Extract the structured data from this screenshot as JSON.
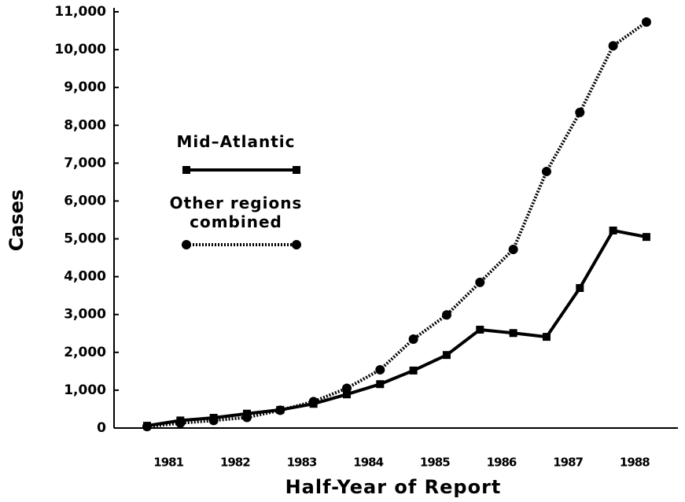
{
  "chart_data": {
    "type": "line",
    "xlabel": "Half-Year of Report",
    "ylabel": "Cases",
    "categories": [
      "1981",
      null,
      "1982",
      null,
      "1983",
      null,
      "1984",
      null,
      "1985",
      null,
      "1986",
      null,
      "1987",
      null,
      "1988",
      null
    ],
    "series": [
      {
        "name": "Mid–Atlantic",
        "color": "#000000",
        "linestyle": "solid",
        "marker": "square",
        "values": [
          60,
          200,
          270,
          380,
          480,
          640,
          890,
          1160,
          1520,
          1930,
          2600,
          2510,
          2410,
          3700,
          5220,
          5050
        ]
      },
      {
        "name": "Other regions combined",
        "color": "#000000",
        "linestyle": "dotted",
        "marker": "circle",
        "values": [
          40,
          130,
          200,
          280,
          470,
          700,
          1050,
          1540,
          2350,
          2990,
          3850,
          4720,
          6780,
          8340,
          10100,
          10730
        ]
      }
    ],
    "ylim": [
      0,
      11000
    ],
    "yticks": [
      0,
      {
        "value": 1000,
        "label": "1,000"
      },
      {
        "value": 2000,
        "label": "2,000"
      },
      {
        "value": 3000,
        "label": "3,000"
      },
      {
        "value": 4000,
        "label": "4,000"
      },
      {
        "value": 5000,
        "label": "5,000"
      },
      {
        "value": 6000,
        "label": "6,000"
      },
      {
        "value": 7000,
        "label": "7,000"
      },
      {
        "value": 8000,
        "label": "8,000"
      },
      {
        "value": 9000,
        "label": "9,000"
      },
      {
        "value": 10000,
        "label": "10,000"
      },
      {
        "value": 11000,
        "label": "11,000"
      }
    ],
    "grid": false,
    "legend": "center left"
  }
}
